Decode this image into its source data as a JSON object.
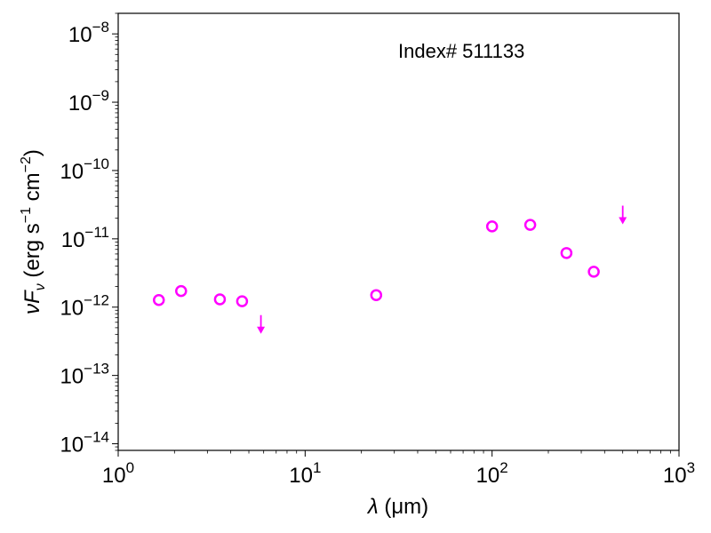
{
  "chart_data": {
    "type": "scatter",
    "title": "",
    "annotation": "Index# 511133",
    "xlabel": {
      "symbol": "λ",
      "unit": " (μm)"
    },
    "ylabel": {
      "prefix": "νF",
      "sub": "ν",
      "unit_a": " (erg s",
      "exp_a": "−1",
      "unit_b": " cm",
      "exp_b": "−2",
      "unit_c": ")"
    },
    "xscale": "log",
    "yscale": "log",
    "xlim": [
      1,
      1000
    ],
    "ylim": [
      8e-15,
      2e-08
    ],
    "x_ticks": [
      {
        "base": "10",
        "exp": "0",
        "value": 1
      },
      {
        "base": "10",
        "exp": "1",
        "value": 10
      },
      {
        "base": "10",
        "exp": "2",
        "value": 100
      },
      {
        "base": "10",
        "exp": "3",
        "value": 1000
      }
    ],
    "y_ticks": [
      {
        "base": "10",
        "exp": "−14",
        "value": 1e-14
      },
      {
        "base": "10",
        "exp": "−13",
        "value": 1e-13
      },
      {
        "base": "10",
        "exp": "−12",
        "value": 1e-12
      },
      {
        "base": "10",
        "exp": "−11",
        "value": 1e-11
      },
      {
        "base": "10",
        "exp": "−10",
        "value": 1e-10
      },
      {
        "base": "10",
        "exp": "−9",
        "value": 1e-09
      },
      {
        "base": "10",
        "exp": "−8",
        "value": 1e-08
      }
    ],
    "grid": false,
    "legend": "none",
    "color": "#ff00ff",
    "series": [
      {
        "marker": "open-circle",
        "points": [
          {
            "x": 1.65,
            "y": 1.27e-12
          },
          {
            "x": 2.17,
            "y": 1.72e-12
          },
          {
            "x": 3.5,
            "y": 1.3e-12
          },
          {
            "x": 4.6,
            "y": 1.22e-12
          },
          {
            "x": 24,
            "y": 1.5e-12
          },
          {
            "x": 100,
            "y": 1.52e-11
          },
          {
            "x": 160,
            "y": 1.6e-11
          },
          {
            "x": 250,
            "y": 6.2e-12
          },
          {
            "x": 350,
            "y": 3.3e-12
          }
        ]
      },
      {
        "marker": "upper-limit-arrow",
        "points": [
          {
            "x": 5.8,
            "y": 5.5e-13
          },
          {
            "x": 500,
            "y": 2.2e-11
          }
        ]
      }
    ]
  }
}
